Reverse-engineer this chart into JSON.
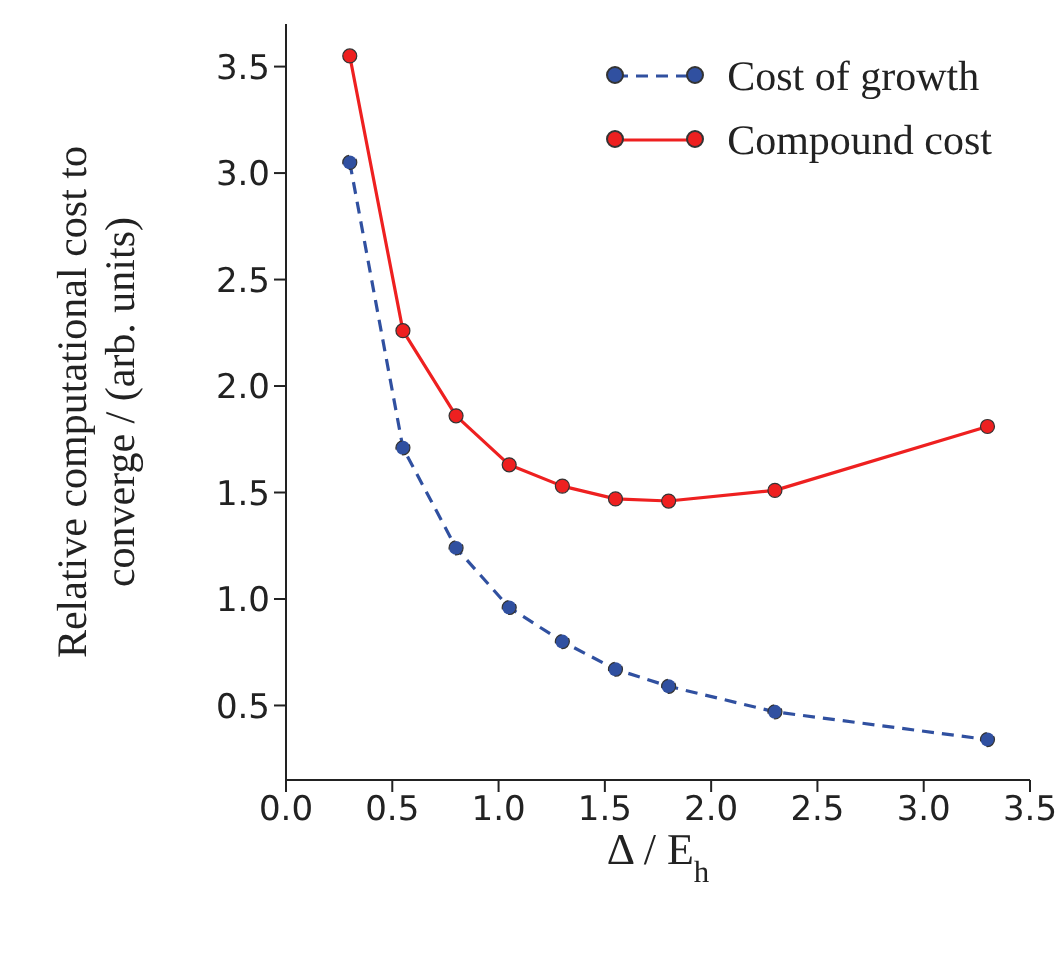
{
  "chart_data": {
    "type": "line",
    "xlabel": "Δ / E$_{h}$",
    "ylabel": "Relative computational cost to converge / (arb. units)",
    "x": [
      0.3,
      0.55,
      0.8,
      1.05,
      1.3,
      1.55,
      1.8,
      2.3,
      3.3
    ],
    "series": [
      {
        "name": "Cost of growth",
        "color": "#3050a0",
        "line_style": "dashed",
        "values": [
          3.05,
          1.71,
          1.24,
          0.96,
          0.8,
          0.67,
          0.59,
          0.47,
          0.34
        ]
      },
      {
        "name": "Compound cost",
        "color": "#ee2020",
        "line_style": "solid",
        "values": [
          3.55,
          2.26,
          1.86,
          1.63,
          1.53,
          1.47,
          1.46,
          1.51,
          1.81
        ]
      }
    ],
    "marker": "circle",
    "legend": "top right",
    "grid": false,
    "xlim": [
      0,
      3.5
    ],
    "xticks": [
      {
        "value": 0,
        "label": "0.0"
      },
      0.5,
      {
        "value": 1,
        "label": "1.0"
      },
      1.5,
      {
        "value": 2,
        "label": "2.0"
      },
      2.5,
      {
        "value": 3,
        "label": "3.0"
      },
      3.5
    ],
    "ylim": [
      0.15,
      3.7
    ],
    "yticks": [
      0.5,
      {
        "value": 1,
        "label": "1.0"
      },
      1.5,
      {
        "value": 2,
        "label": "2.0"
      },
      2.5,
      {
        "value": 3,
        "label": "3.0"
      },
      3.5
    ]
  }
}
